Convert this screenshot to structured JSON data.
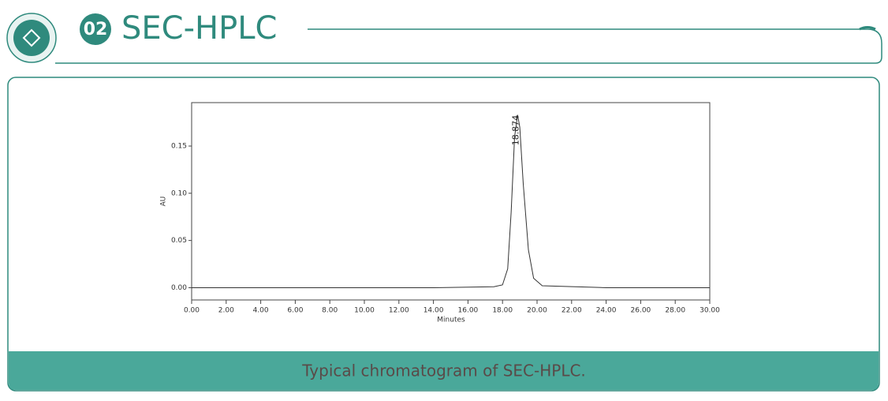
{
  "header": {
    "number": "02",
    "title": "SEC-HPLC"
  },
  "caption": "Typical chromatogram of SEC-HPLC.",
  "chart_data": {
    "type": "line",
    "xlabel": "Minutes",
    "ylabel": "AU",
    "x": [
      0,
      4,
      10,
      14,
      17.5,
      18.0,
      18.3,
      18.5,
      18.7,
      18.874,
      19.0,
      19.2,
      19.5,
      19.8,
      20.3,
      24,
      28,
      30
    ],
    "series": [
      {
        "name": "AU",
        "color": "#333333",
        "values": [
          0,
          0,
          0,
          0,
          0.001,
          0.003,
          0.02,
          0.08,
          0.16,
          0.183,
          0.17,
          0.11,
          0.04,
          0.01,
          0.002,
          0,
          0,
          0
        ]
      }
    ],
    "annotations": [
      {
        "text": "18.874",
        "x": 18.874
      }
    ],
    "xlim": [
      0,
      30
    ],
    "xticks": [
      {
        "value": 0,
        "label": "0.00"
      },
      {
        "value": 2,
        "label": "2.00"
      },
      {
        "value": 4,
        "label": "4.00"
      },
      {
        "value": 6,
        "label": "6.00"
      },
      {
        "value": 8,
        "label": "8.00"
      },
      {
        "value": 10,
        "label": "10.00"
      },
      {
        "value": 12,
        "label": "12.00"
      },
      {
        "value": 14,
        "label": "14.00"
      },
      {
        "value": 16,
        "label": "16.00"
      },
      {
        "value": 18,
        "label": "18.00"
      },
      {
        "value": 20,
        "label": "20.00"
      },
      {
        "value": 22,
        "label": "22.00"
      },
      {
        "value": 24,
        "label": "24.00"
      },
      {
        "value": 26,
        "label": "26.00"
      },
      {
        "value": 28,
        "label": "28.00"
      },
      {
        "value": 30,
        "label": "30.00"
      }
    ],
    "ylim": [
      -0.013,
      0.196
    ],
    "yticks": [
      {
        "value": 0,
        "label": "0.00"
      },
      {
        "value": 0.05,
        "label": "0.05"
      },
      {
        "value": 0.1,
        "label": "0.10"
      },
      {
        "value": 0.15,
        "label": "0.15"
      }
    ],
    "grid": false
  }
}
